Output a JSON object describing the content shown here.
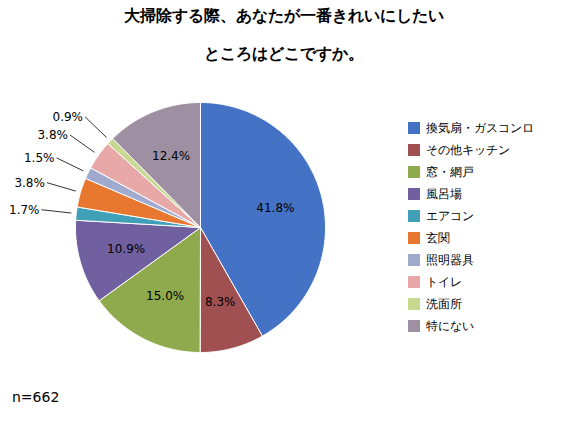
{
  "chart_data": {
    "type": "pie",
    "title": "大掃除する際、あなたが一番きれいにしたい\n\nところはどこですか。",
    "categories": [
      "換気扇・ガスコンロ",
      "その他キッチン",
      "窓・網戸",
      "風呂場",
      "エアコン",
      "玄関",
      "照明器具",
      "トイレ",
      "洗面所",
      "特にない"
    ],
    "values": [
      41.8,
      8.3,
      15.0,
      10.9,
      1.7,
      3.8,
      1.5,
      3.8,
      0.9,
      12.4
    ],
    "value_labels": [
      "41.8%",
      "8.3%",
      "15.0%",
      "10.9%",
      "1.7%",
      "3.8%",
      "1.5%",
      "3.8%",
      "0.9%",
      "12.4%"
    ],
    "colors": [
      "#4472C4",
      "#A05050",
      "#8EAA4C",
      "#7060A0",
      "#40A0B8",
      "#E87830",
      "#A0AACE",
      "#E8A8A8",
      "#C8D890",
      "#9E8FA2"
    ],
    "data_labels": true,
    "legend": "right",
    "annotations": [
      "n=662"
    ]
  }
}
